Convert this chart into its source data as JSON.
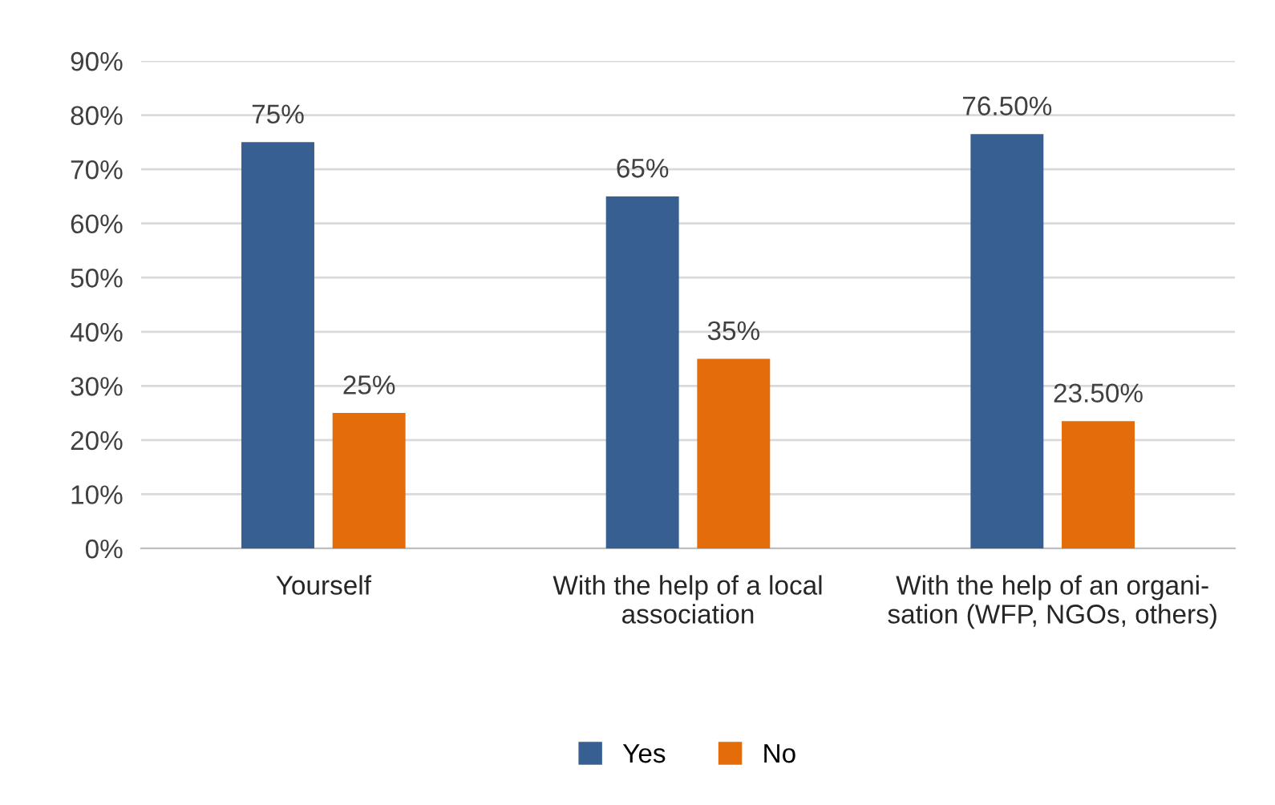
{
  "chart_data": {
    "type": "bar",
    "categories": [
      "Yourself",
      "With the help of a local\nassociation",
      "With the help of an organi-\nsation (WFP, NGOs, others)"
    ],
    "series": [
      {
        "name": "Yes",
        "color": "#375f92",
        "values": [
          75,
          65,
          76.5
        ],
        "value_labels": [
          "75%",
          "65%",
          "76.50%"
        ]
      },
      {
        "name": "No",
        "color": "#e46c0a",
        "values": [
          25,
          35,
          23.5
        ],
        "value_labels": [
          "25%",
          "35%",
          "23.50%"
        ]
      }
    ],
    "ylim": [
      0,
      90
    ],
    "yticks": [
      {
        "value": 0,
        "label": "0%"
      },
      {
        "value": 10,
        "label": "10%"
      },
      {
        "value": 20,
        "label": "20%"
      },
      {
        "value": 30,
        "label": "30%"
      },
      {
        "value": 40,
        "label": "40%"
      },
      {
        "value": 50,
        "label": "50%"
      },
      {
        "value": 60,
        "label": "60%"
      },
      {
        "value": 70,
        "label": "70%"
      },
      {
        "value": 80,
        "label": "80%"
      },
      {
        "value": 90,
        "label": "90%"
      }
    ],
    "grid": "y",
    "legend": "bottom"
  }
}
